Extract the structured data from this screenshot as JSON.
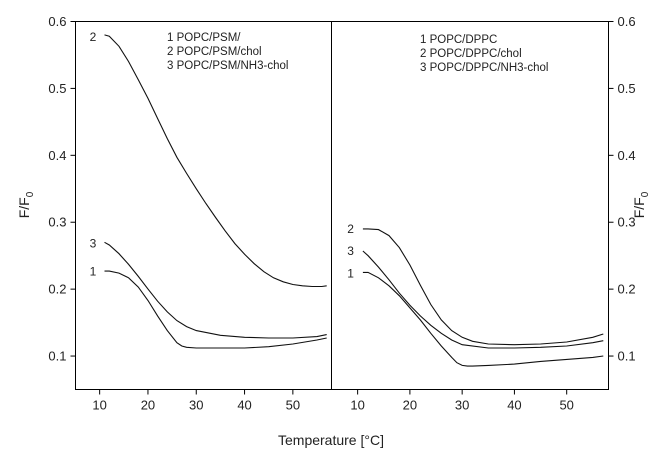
{
  "chart_data": {
    "type": "line",
    "xlabel": "Temperature [°C]",
    "ylabel": "F/F",
    "ylabel_subscript": "0",
    "xlim": [
      5,
      58
    ],
    "ylim": [
      0.05,
      0.6
    ],
    "xticks": [
      10,
      20,
      30,
      40,
      50
    ],
    "yticks": [
      0.1,
      0.2,
      0.3,
      0.4,
      0.5,
      0.6
    ],
    "panels": [
      {
        "legend": [
          "1 POPC/PSM/",
          "2 POPC/PSM/chol",
          "3 POPC/PSM/NH3-chol"
        ],
        "series": [
          {
            "label": "1",
            "x": [
              11,
              12,
              14,
              16,
              18,
              20,
              22,
              24,
              26,
              27,
              28,
              30,
              35,
              40,
              45,
              50,
              55,
              57
            ],
            "y": [
              0.227,
              0.227,
              0.224,
              0.217,
              0.203,
              0.183,
              0.16,
              0.138,
              0.12,
              0.115,
              0.113,
              0.112,
              0.112,
              0.112,
              0.114,
              0.118,
              0.124,
              0.127
            ]
          },
          {
            "label": "2",
            "x": [
              11,
              12,
              14,
              16,
              18,
              20,
              22,
              24,
              26,
              28,
              30,
              32,
              34,
              36,
              38,
              40,
              42,
              44,
              46,
              48,
              50,
              52,
              54,
              56,
              57
            ],
            "y": [
              0.58,
              0.578,
              0.563,
              0.54,
              0.513,
              0.485,
              0.455,
              0.425,
              0.397,
              0.373,
              0.35,
              0.328,
              0.307,
              0.287,
              0.268,
              0.252,
              0.238,
              0.226,
              0.217,
              0.211,
              0.207,
              0.205,
              0.204,
              0.204,
              0.205
            ]
          },
          {
            "label": "3",
            "x": [
              11,
              12,
              14,
              16,
              18,
              20,
              22,
              24,
              26,
              28,
              30,
              35,
              40,
              45,
              50,
              55,
              57
            ],
            "y": [
              0.27,
              0.266,
              0.253,
              0.237,
              0.219,
              0.2,
              0.182,
              0.166,
              0.153,
              0.144,
              0.138,
              0.131,
              0.128,
              0.127,
              0.127,
              0.129,
              0.132
            ]
          }
        ],
        "curve_labels": [
          {
            "text": "1",
            "x": 9.3,
            "y": 0.226
          },
          {
            "text": "2",
            "x": 9.3,
            "y": 0.577
          },
          {
            "text": "3",
            "x": 9.3,
            "y": 0.268
          }
        ]
      },
      {
        "legend": [
          "1 POPC/DPPC",
          "2 POPC/DPPC/chol",
          "3 POPC/DPPC/NH3-chol"
        ],
        "series": [
          {
            "label": "1",
            "x": [
              11,
              12,
              14,
              16,
              18,
              20,
              22,
              24,
              26,
              28,
              29,
              30,
              31,
              32,
              35,
              40,
              45,
              50,
              55,
              57
            ],
            "y": [
              0.225,
              0.225,
              0.217,
              0.205,
              0.19,
              0.172,
              0.154,
              0.134,
              0.115,
              0.098,
              0.09,
              0.086,
              0.085,
              0.085,
              0.086,
              0.088,
              0.092,
              0.095,
              0.098,
              0.1
            ]
          },
          {
            "label": "2",
            "x": [
              11,
              12,
              14,
              16,
              18,
              20,
              22,
              24,
              26,
              28,
              30,
              32,
              35,
              40,
              45,
              50,
              55,
              57
            ],
            "y": [
              0.29,
              0.29,
              0.289,
              0.28,
              0.262,
              0.236,
              0.206,
              0.177,
              0.154,
              0.138,
              0.128,
              0.122,
              0.118,
              0.117,
              0.118,
              0.121,
              0.128,
              0.133
            ]
          },
          {
            "label": "3",
            "x": [
              11,
              12,
              14,
              16,
              18,
              20,
              22,
              24,
              26,
              28,
              30,
              35,
              40,
              45,
              50,
              55,
              57
            ],
            "y": [
              0.257,
              0.25,
              0.233,
              0.214,
              0.194,
              0.176,
              0.16,
              0.146,
              0.134,
              0.124,
              0.117,
              0.112,
              0.112,
              0.113,
              0.115,
              0.12,
              0.123
            ]
          }
        ],
        "curve_labels": [
          {
            "text": "1",
            "x": 9.3,
            "y": 0.223
          },
          {
            "text": "2",
            "x": 9.3,
            "y": 0.29
          },
          {
            "text": "3",
            "x": 9.3,
            "y": 0.257
          }
        ]
      }
    ]
  }
}
